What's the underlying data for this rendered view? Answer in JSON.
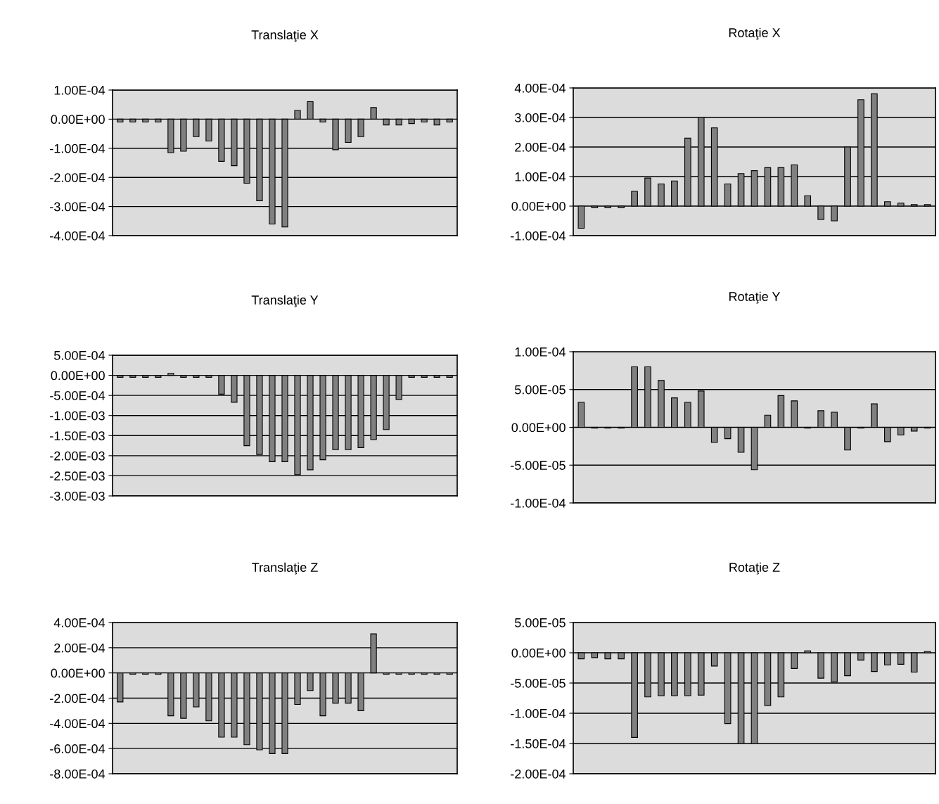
{
  "chart_data": [
    {
      "type": "bar",
      "title": "Translaţie X",
      "color": "#808080",
      "grid": "y",
      "tick_labels": "y",
      "categories": [
        null,
        null,
        null,
        null,
        null,
        null,
        null,
        null,
        null,
        null,
        null,
        null,
        null,
        null,
        null,
        null,
        null,
        null,
        null,
        null,
        null,
        null,
        null,
        null,
        null,
        null,
        null
      ],
      "values": [
        -1e-05,
        -1e-05,
        -1e-05,
        -1e-05,
        -0.000115,
        -0.00011,
        -6e-05,
        -7.5e-05,
        -0.000145,
        -0.00016,
        -0.00022,
        -0.00028,
        -0.00036,
        -0.00037,
        3e-05,
        6e-05,
        -1e-05,
        -0.000105,
        -8e-05,
        -6e-05,
        4e-05,
        -2e-05,
        -2e-05,
        -1.5e-05,
        -1e-05,
        -2e-05,
        -1e-05
      ],
      "ylim": [
        -0.0004,
        0.0001
      ],
      "yticks": [
        {
          "value": 0.0001,
          "label": "1.00E-04"
        },
        {
          "value": 0,
          "label": "0.00E+00"
        },
        {
          "value": -0.0001,
          "label": "-1.00E-04"
        },
        {
          "value": -0.0002,
          "label": "-2.00E-04"
        },
        {
          "value": -0.0003,
          "label": "-3.00E-04"
        },
        {
          "value": -0.0004,
          "label": "-4.00E-04"
        }
      ]
    },
    {
      "type": "bar",
      "title": "Rotaţie X",
      "color": "#808080",
      "grid": "y",
      "tick_labels": "y",
      "categories": [
        null,
        null,
        null,
        null,
        null,
        null,
        null,
        null,
        null,
        null,
        null,
        null,
        null,
        null,
        null,
        null,
        null,
        null,
        null,
        null,
        null,
        null,
        null,
        null,
        null,
        null,
        null
      ],
      "values": [
        -7.5e-05,
        -5e-06,
        -5e-06,
        -5e-06,
        5e-05,
        9.5e-05,
        7.5e-05,
        8.5e-05,
        0.00023,
        0.0003,
        0.000265,
        7.5e-05,
        0.00011,
        0.00012,
        0.00013,
        0.00013,
        0.00014,
        3.5e-05,
        -4.5e-05,
        -5e-05,
        0.0002,
        0.00036,
        0.00038,
        1.5e-05,
        1e-05,
        5e-06,
        5e-06
      ],
      "ylim": [
        -0.0001,
        0.0004
      ],
      "yticks": [
        {
          "value": 0.0004,
          "label": "4.00E-04"
        },
        {
          "value": 0.0003,
          "label": "3.00E-04"
        },
        {
          "value": 0.0002,
          "label": "2.00E-04"
        },
        {
          "value": 0.0001,
          "label": "1.00E-04"
        },
        {
          "value": 0,
          "label": "0.00E+00"
        },
        {
          "value": -0.0001,
          "label": "-1.00E-04"
        }
      ]
    },
    {
      "type": "bar",
      "title": "Translaţie Y",
      "color": "#808080",
      "grid": "y",
      "tick_labels": "y",
      "categories": [
        null,
        null,
        null,
        null,
        null,
        null,
        null,
        null,
        null,
        null,
        null,
        null,
        null,
        null,
        null,
        null,
        null,
        null,
        null,
        null,
        null,
        null,
        null,
        null,
        null,
        null,
        null
      ],
      "values": [
        -5e-05,
        -5e-05,
        -5e-05,
        -5e-05,
        5e-05,
        -5e-05,
        -5e-05,
        -5e-05,
        -0.00047,
        -0.00067,
        -0.00175,
        -0.00197,
        -0.00215,
        -0.00215,
        -0.00247,
        -0.00235,
        -0.0021,
        -0.00185,
        -0.00185,
        -0.0018,
        -0.0016,
        -0.00135,
        -0.0006,
        -5e-05,
        -5e-05,
        -5e-05,
        -5e-05
      ],
      "ylim": [
        -0.003,
        0.0005
      ],
      "yticks": [
        {
          "value": 0.0005,
          "label": "5.00E-04"
        },
        {
          "value": 0,
          "label": "0.00E+00"
        },
        {
          "value": -0.0005,
          "label": "-5.00E-04"
        },
        {
          "value": -0.001,
          "label": "-1.00E-03"
        },
        {
          "value": -0.0015,
          "label": "-1.50E-03"
        },
        {
          "value": -0.002,
          "label": "-2.00E-03"
        },
        {
          "value": -0.0025,
          "label": "-2.50E-03"
        },
        {
          "value": -0.003,
          "label": "-3.00E-03"
        }
      ]
    },
    {
      "type": "bar",
      "title": "Rotaţie Y",
      "color": "#808080",
      "grid": "y",
      "tick_labels": "y",
      "categories": [
        null,
        null,
        null,
        null,
        null,
        null,
        null,
        null,
        null,
        null,
        null,
        null,
        null,
        null,
        null,
        null,
        null,
        null,
        null,
        null,
        null,
        null,
        null,
        null,
        null,
        null,
        null
      ],
      "values": [
        3.3e-05,
        -1e-06,
        -1e-06,
        -1e-06,
        8e-05,
        8e-05,
        6.2e-05,
        3.9e-05,
        3.3e-05,
        4.8e-05,
        -2e-05,
        -1.5e-05,
        -3.3e-05,
        -5.6e-05,
        1.6e-05,
        4.2e-05,
        3.5e-05,
        -1e-06,
        2.2e-05,
        2e-05,
        -3e-05,
        -1e-06,
        3.1e-05,
        -1.9e-05,
        -1e-05,
        -5e-06,
        -1e-06
      ],
      "ylim": [
        -0.0001,
        0.0001
      ],
      "yticks": [
        {
          "value": 0.0001,
          "label": "1.00E-04"
        },
        {
          "value": 5e-05,
          "label": "5.00E-05"
        },
        {
          "value": 0,
          "label": "0.00E+00"
        },
        {
          "value": -5e-05,
          "label": "-5.00E-05"
        },
        {
          "value": -0.0001,
          "label": "-1.00E-04"
        }
      ]
    },
    {
      "type": "bar",
      "title": "Translaţie Z",
      "color": "#808080",
      "grid": "y",
      "tick_labels": "y",
      "categories": [
        null,
        null,
        null,
        null,
        null,
        null,
        null,
        null,
        null,
        null,
        null,
        null,
        null,
        null,
        null,
        null,
        null,
        null,
        null,
        null,
        null,
        null,
        null,
        null,
        null,
        null,
        null
      ],
      "values": [
        -0.00023,
        -1e-05,
        -1e-05,
        -1e-05,
        -0.00034,
        -0.00036,
        -0.00027,
        -0.00038,
        -0.00051,
        -0.00051,
        -0.00057,
        -0.00061,
        -0.00064,
        -0.00064,
        -0.00025,
        -0.00014,
        -0.00034,
        -0.00024,
        -0.00024,
        -0.0003,
        0.00031,
        -1e-05,
        -1e-05,
        -1e-05,
        -1e-05,
        -1e-05,
        -1e-05
      ],
      "ylim": [
        -0.0008,
        0.0004
      ],
      "yticks": [
        {
          "value": 0.0004,
          "label": "4.00E-04"
        },
        {
          "value": 0.0002,
          "label": "2.00E-04"
        },
        {
          "value": 0,
          "label": "0.00E+00"
        },
        {
          "value": -0.0002,
          "label": "-2.00E-04"
        },
        {
          "value": -0.0004,
          "label": "-4.00E-04"
        },
        {
          "value": -0.0006,
          "label": "-6.00E-04"
        },
        {
          "value": -0.0008,
          "label": "-8.00E-04"
        }
      ]
    },
    {
      "type": "bar",
      "title": "Rotaţie Z",
      "color": "#808080",
      "grid": "y",
      "tick_labels": "y",
      "categories": [
        null,
        null,
        null,
        null,
        null,
        null,
        null,
        null,
        null,
        null,
        null,
        null,
        null,
        null,
        null,
        null,
        null,
        null,
        null,
        null,
        null,
        null,
        null,
        null,
        null,
        null,
        null
      ],
      "values": [
        -1e-05,
        -8e-06,
        -1e-05,
        -1e-05,
        -0.00014,
        -7.3e-05,
        -7.1e-05,
        -7.1e-05,
        -7.1e-05,
        -7e-05,
        -2.2e-05,
        -0.000117,
        -0.00015,
        -0.00015,
        -8.7e-05,
        -7.3e-05,
        -2.6e-05,
        3e-06,
        -4.2e-05,
        -4.8e-05,
        -3.8e-05,
        -1.2e-05,
        -3.1e-05,
        -2e-05,
        -1.9e-05,
        -3.2e-05,
        2e-06
      ],
      "ylim": [
        -0.0002,
        5e-05
      ],
      "yticks": [
        {
          "value": 5e-05,
          "label": "5.00E-05"
        },
        {
          "value": 0,
          "label": "0.00E+00"
        },
        {
          "value": -5e-05,
          "label": "-5.00E-05"
        },
        {
          "value": -0.0001,
          "label": "-1.00E-04"
        },
        {
          "value": -0.00015,
          "label": "-1.50E-04"
        },
        {
          "value": -0.0002,
          "label": "-2.00E-04"
        }
      ]
    }
  ]
}
